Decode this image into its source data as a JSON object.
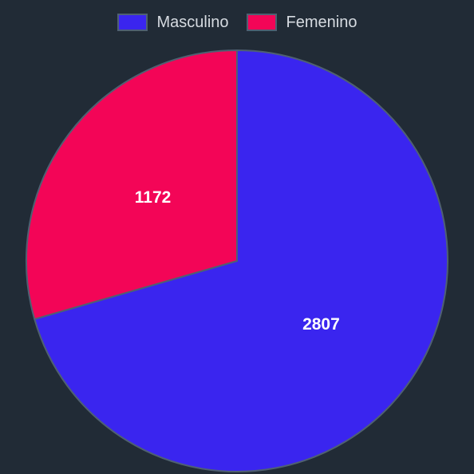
{
  "chart_data": {
    "type": "pie",
    "categories": [
      "Masculino",
      "Femenino"
    ],
    "values": [
      2807,
      1172
    ],
    "colors": [
      "#3a25ef",
      "#f30557"
    ],
    "border_color": "#4f6072",
    "background": "#212b36",
    "legend_position": "top",
    "start_angle": "top, clockwise",
    "data_labels": [
      "2807",
      "1172"
    ]
  }
}
